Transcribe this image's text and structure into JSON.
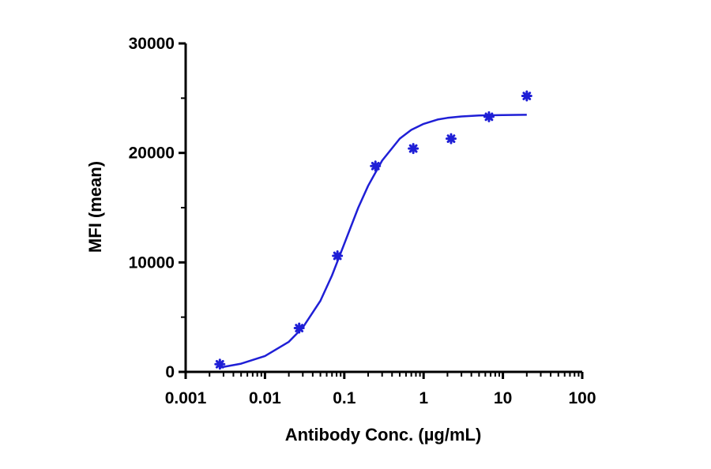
{
  "chart_data": {
    "type": "scatter",
    "title": "",
    "xlabel": "Antibody Conc. (µg/mL)",
    "ylabel": "MFI (mean)",
    "x_scale": "log",
    "xlim": [
      0.001,
      100
    ],
    "ylim": [
      0,
      30000
    ],
    "x_ticks": [
      "0.001",
      "0.01",
      "0.1",
      "1",
      "10",
      "100"
    ],
    "y_ticks": [
      "0",
      "10000",
      "20000",
      "30000"
    ],
    "grid": false,
    "legend": "none",
    "series": [
      {
        "x": [
          0.0027,
          0.027,
          0.082,
          0.247,
          0.741,
          2.22,
          6.67,
          20
        ],
        "y": [
          700,
          4000,
          10600,
          18800,
          20400,
          21300,
          23300,
          25200
        ],
        "color": "#1f1fd6",
        "marker": "asterisk"
      }
    ],
    "fit_curve": {
      "type": "4PL",
      "x": [
        0.0027,
        0.005,
        0.01,
        0.02,
        0.03,
        0.05,
        0.07,
        0.1,
        0.15,
        0.2,
        0.3,
        0.5,
        0.7,
        1,
        1.5,
        2,
        3,
        5,
        7,
        10,
        15,
        20
      ],
      "y": [
        400,
        750,
        1450,
        2750,
        4050,
        6500,
        8800,
        11700,
        15000,
        17000,
        19300,
        21300,
        22100,
        22650,
        23050,
        23200,
        23330,
        23420,
        23440,
        23460,
        23470,
        23480
      ],
      "color": "#1f1fd6"
    }
  }
}
